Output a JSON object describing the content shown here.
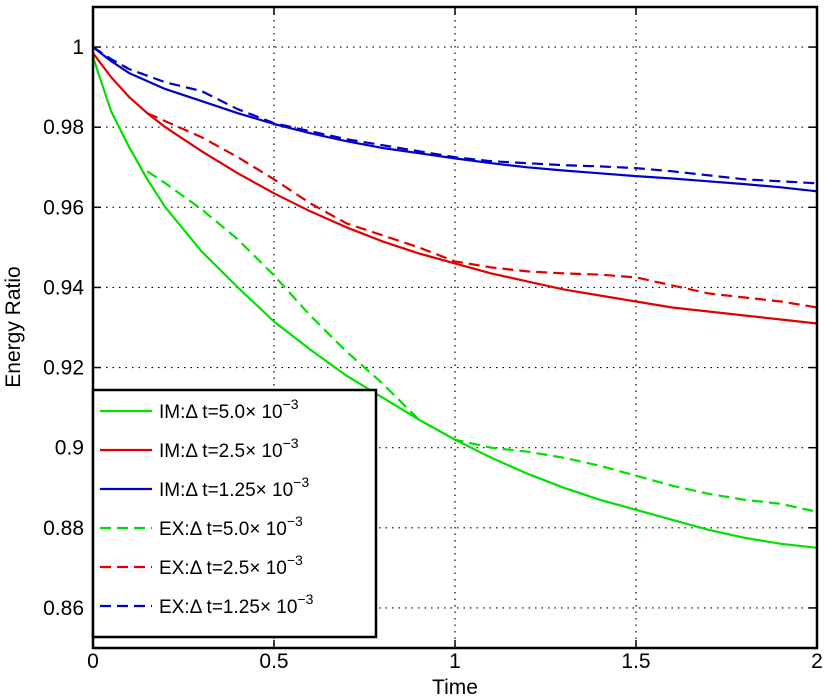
{
  "chart_data": {
    "type": "line",
    "title": "",
    "xlabel": "Time",
    "ylabel": "Energy Ratio",
    "xlim": [
      0,
      2
    ],
    "ylim": [
      0.85,
      1.01
    ],
    "xticks": [
      0,
      0.5,
      1,
      1.5,
      2
    ],
    "xtick_labels": [
      "0",
      "0.5",
      "1",
      "1.5",
      "2"
    ],
    "yticks": [
      0.86,
      0.88,
      0.9,
      0.92,
      0.94,
      0.96,
      0.98,
      1
    ],
    "ytick_labels": [
      "0.86",
      "0.88",
      "0.9",
      "0.92",
      "0.94",
      "0.96",
      "0.98",
      "1"
    ],
    "grid": true,
    "legend_position": "bottom-left",
    "series": [
      {
        "legend": {
          "prefix": "IM:",
          "delta": "Δ",
          "body": " t=5.0× 10",
          "exp": "−3"
        },
        "color": "#00e000",
        "dash": "solid",
        "x": [
          0,
          0.05,
          0.1,
          0.15,
          0.2,
          0.3,
          0.4,
          0.5,
          0.6,
          0.7,
          0.8,
          0.9,
          1.0,
          1.1,
          1.2,
          1.3,
          1.4,
          1.5,
          1.6,
          1.7,
          1.8,
          1.9,
          2.0
        ],
        "y": [
          0.9975,
          0.984,
          0.975,
          0.967,
          0.96,
          0.949,
          0.94,
          0.9315,
          0.9245,
          0.918,
          0.9125,
          0.907,
          0.902,
          0.8975,
          0.8935,
          0.89,
          0.887,
          0.8845,
          0.882,
          0.8795,
          0.8775,
          0.876,
          0.875
        ]
      },
      {
        "legend": {
          "prefix": "IM:",
          "delta": "Δ",
          "body": " t=2.5× 10",
          "exp": "−3"
        },
        "color": "#e00000",
        "dash": "solid",
        "x": [
          0,
          0.05,
          0.1,
          0.15,
          0.2,
          0.3,
          0.4,
          0.5,
          0.6,
          0.7,
          0.8,
          0.9,
          1.0,
          1.1,
          1.2,
          1.3,
          1.4,
          1.5,
          1.6,
          1.7,
          1.8,
          1.9,
          2.0
        ],
        "y": [
          0.9985,
          0.9925,
          0.9875,
          0.9835,
          0.98,
          0.974,
          0.9685,
          0.9635,
          0.959,
          0.955,
          0.9515,
          0.9485,
          0.946,
          0.9435,
          0.9415,
          0.9395,
          0.938,
          0.9365,
          0.935,
          0.934,
          0.933,
          0.932,
          0.931
        ]
      },
      {
        "legend": {
          "prefix": "IM:",
          "delta": "Δ",
          "body": " t=1.25× 10",
          "exp": "−3"
        },
        "color": "#0000c8",
        "dash": "solid",
        "x": [
          0,
          0.05,
          0.1,
          0.2,
          0.3,
          0.4,
          0.5,
          0.6,
          0.7,
          0.8,
          0.9,
          1.0,
          1.1,
          1.2,
          1.3,
          1.4,
          1.5,
          1.6,
          1.7,
          1.8,
          1.9,
          2.0
        ],
        "y": [
          1.0,
          0.9965,
          0.9935,
          0.9895,
          0.9865,
          0.9835,
          0.9808,
          0.9785,
          0.9765,
          0.9748,
          0.9735,
          0.9722,
          0.971,
          0.97,
          0.9692,
          0.9685,
          0.9678,
          0.9672,
          0.9665,
          0.9658,
          0.965,
          0.964
        ]
      },
      {
        "legend": {
          "prefix": "EX:",
          "delta": "Δ",
          "body": " t=5.0× 10",
          "exp": "−3"
        },
        "color": "#00e000",
        "dash": "dashed",
        "x": [
          0.15,
          0.2,
          0.3,
          0.4,
          0.5,
          0.6,
          0.7,
          0.8,
          0.9,
          1.0,
          1.1,
          1.2,
          1.3,
          1.4,
          1.5,
          1.6,
          1.7,
          1.8,
          1.9,
          2.0
        ],
        "y": [
          0.969,
          0.966,
          0.9595,
          0.952,
          0.943,
          0.933,
          0.924,
          0.916,
          0.907,
          0.902,
          0.9,
          0.899,
          0.8975,
          0.8955,
          0.893,
          0.8905,
          0.8885,
          0.887,
          0.886,
          0.884
        ]
      },
      {
        "legend": {
          "prefix": "EX:",
          "delta": "Δ",
          "body": " t=2.5× 10",
          "exp": "−3"
        },
        "color": "#e00000",
        "dash": "dashed",
        "x": [
          0.15,
          0.2,
          0.3,
          0.4,
          0.5,
          0.6,
          0.7,
          0.8,
          0.9,
          1.0,
          1.1,
          1.2,
          1.3,
          1.4,
          1.5,
          1.6,
          1.7,
          1.8,
          1.9,
          2.0
        ],
        "y": [
          0.9835,
          0.9815,
          0.9775,
          0.9725,
          0.967,
          0.961,
          0.956,
          0.953,
          0.95,
          0.9465,
          0.945,
          0.944,
          0.9435,
          0.9432,
          0.9425,
          0.9405,
          0.9385,
          0.9375,
          0.9365,
          0.935
        ]
      },
      {
        "legend": {
          "prefix": "EX:",
          "delta": "Δ",
          "body": " t=1.25× 10",
          "exp": "−3"
        },
        "color": "#0000c8",
        "dash": "dashed",
        "x": [
          0,
          0.05,
          0.1,
          0.2,
          0.3,
          0.4,
          0.5,
          0.6,
          0.7,
          0.8,
          0.9,
          1.0,
          1.1,
          1.2,
          1.3,
          1.4,
          1.5,
          1.6,
          1.7,
          1.8,
          1.9,
          2.0
        ],
        "y": [
          1.0,
          0.997,
          0.9945,
          0.9912,
          0.989,
          0.9845,
          0.981,
          0.979,
          0.977,
          0.9755,
          0.974,
          0.9725,
          0.9715,
          0.971,
          0.9705,
          0.9702,
          0.9698,
          0.969,
          0.968,
          0.967,
          0.9665,
          0.966
        ]
      }
    ]
  }
}
